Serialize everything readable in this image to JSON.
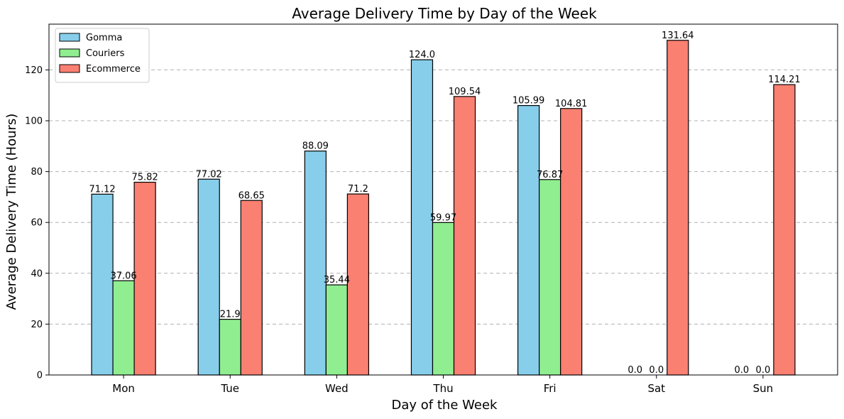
{
  "chart_data": {
    "type": "bar",
    "title": "Average Delivery Time by Day of the Week",
    "xlabel": "Day of the Week",
    "ylabel": "Average Delivery Time (Hours)",
    "categories": [
      "Mon",
      "Tue",
      "Wed",
      "Thu",
      "Fri",
      "Sat",
      "Sun"
    ],
    "ylim": [
      0,
      138
    ],
    "yticks": [
      0,
      20,
      40,
      60,
      80,
      100,
      120
    ],
    "grid": "y-dashed",
    "legend_position": "top-left",
    "series": [
      {
        "name": "Gomma",
        "color": "#87ceeb",
        "values": [
          71.12,
          77.02,
          88.09,
          124.0,
          105.99,
          0.0,
          0.0
        ],
        "labels": [
          "71.12",
          "77.02",
          "88.09",
          "124.0",
          "105.99",
          "0.0",
          "0.0"
        ]
      },
      {
        "name": "Couriers",
        "color": "#90ee90",
        "values": [
          37.06,
          21.9,
          35.44,
          59.97,
          76.87,
          0.0,
          0.0
        ],
        "labels": [
          "37.06",
          "21.9",
          "35.44",
          "59.97",
          "76.87",
          "0.0",
          "0.0"
        ]
      },
      {
        "name": "Ecommerce",
        "color": "#fa8072",
        "values": [
          75.82,
          68.65,
          71.2,
          109.54,
          104.81,
          131.64,
          114.21
        ],
        "labels": [
          "75.82",
          "68.65",
          "71.2",
          "109.54",
          "104.81",
          "131.64",
          "114.21"
        ]
      }
    ]
  }
}
